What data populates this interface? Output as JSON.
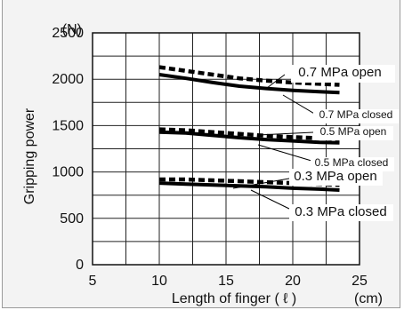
{
  "chart_data": {
    "type": "line",
    "title": "",
    "xlabel": "Length of finger ( ℓ )",
    "xunit": "(cm)",
    "ylabel": "Gripping power",
    "yunit": "(N)",
    "xlim": [
      5,
      25
    ],
    "ylim": [
      0,
      2500
    ],
    "x_ticks": [
      "5",
      "10",
      "15",
      "20",
      "25"
    ],
    "y_ticks": [
      "0",
      "500",
      "1000",
      "1500",
      "2000",
      "2500"
    ],
    "grid": true,
    "series": [
      {
        "name": "0.7 MPa open",
        "style": "dashed",
        "x": [
          10,
          12,
          14,
          16,
          18,
          20,
          22,
          23.5
        ],
        "y": [
          2130,
          2090,
          2050,
          2010,
          1985,
          1965,
          1950,
          1940
        ]
      },
      {
        "name": "0.7 MPa closed",
        "style": "solid",
        "x": [
          10,
          12,
          14,
          16,
          18,
          20,
          22,
          23.5
        ],
        "y": [
          2050,
          2010,
          1965,
          1925,
          1900,
          1880,
          1865,
          1855
        ]
      },
      {
        "name": "0.5 MPa open",
        "style": "dashed",
        "x": [
          10,
          12,
          14,
          16,
          18,
          20,
          22,
          23.5
        ],
        "y": [
          1460,
          1450,
          1430,
          1410,
          1390,
          1375,
          1365,
          1355
        ]
      },
      {
        "name": "0.5 MPa closed",
        "style": "solid",
        "x": [
          10,
          12,
          14,
          16,
          18,
          20,
          22,
          23.5
        ],
        "y": [
          1430,
          1420,
          1395,
          1370,
          1350,
          1335,
          1320,
          1315
        ]
      },
      {
        "name": "0.3 MPa open",
        "style": "dashed",
        "x": [
          10,
          12,
          14,
          16,
          18,
          20,
          22,
          23.5
        ],
        "y": [
          920,
          920,
          910,
          900,
          890,
          880,
          870,
          860
        ]
      },
      {
        "name": "0.3 MPa closed",
        "style": "solid",
        "x": [
          10,
          12,
          14,
          16,
          18,
          20,
          22,
          23.5
        ],
        "y": [
          880,
          870,
          860,
          850,
          840,
          825,
          815,
          805
        ]
      }
    ]
  },
  "annotations": [
    {
      "text": "0.7 MPa open",
      "size": "big"
    },
    {
      "text": "0.7 MPa closed",
      "size": "small"
    },
    {
      "text": "0.5 MPa open",
      "size": "small"
    },
    {
      "text": "0.5 MPa closed",
      "size": "small"
    },
    {
      "text": "0.3 MPa open",
      "size": "big"
    },
    {
      "text": "0.3 MPa closed",
      "size": "big"
    }
  ]
}
